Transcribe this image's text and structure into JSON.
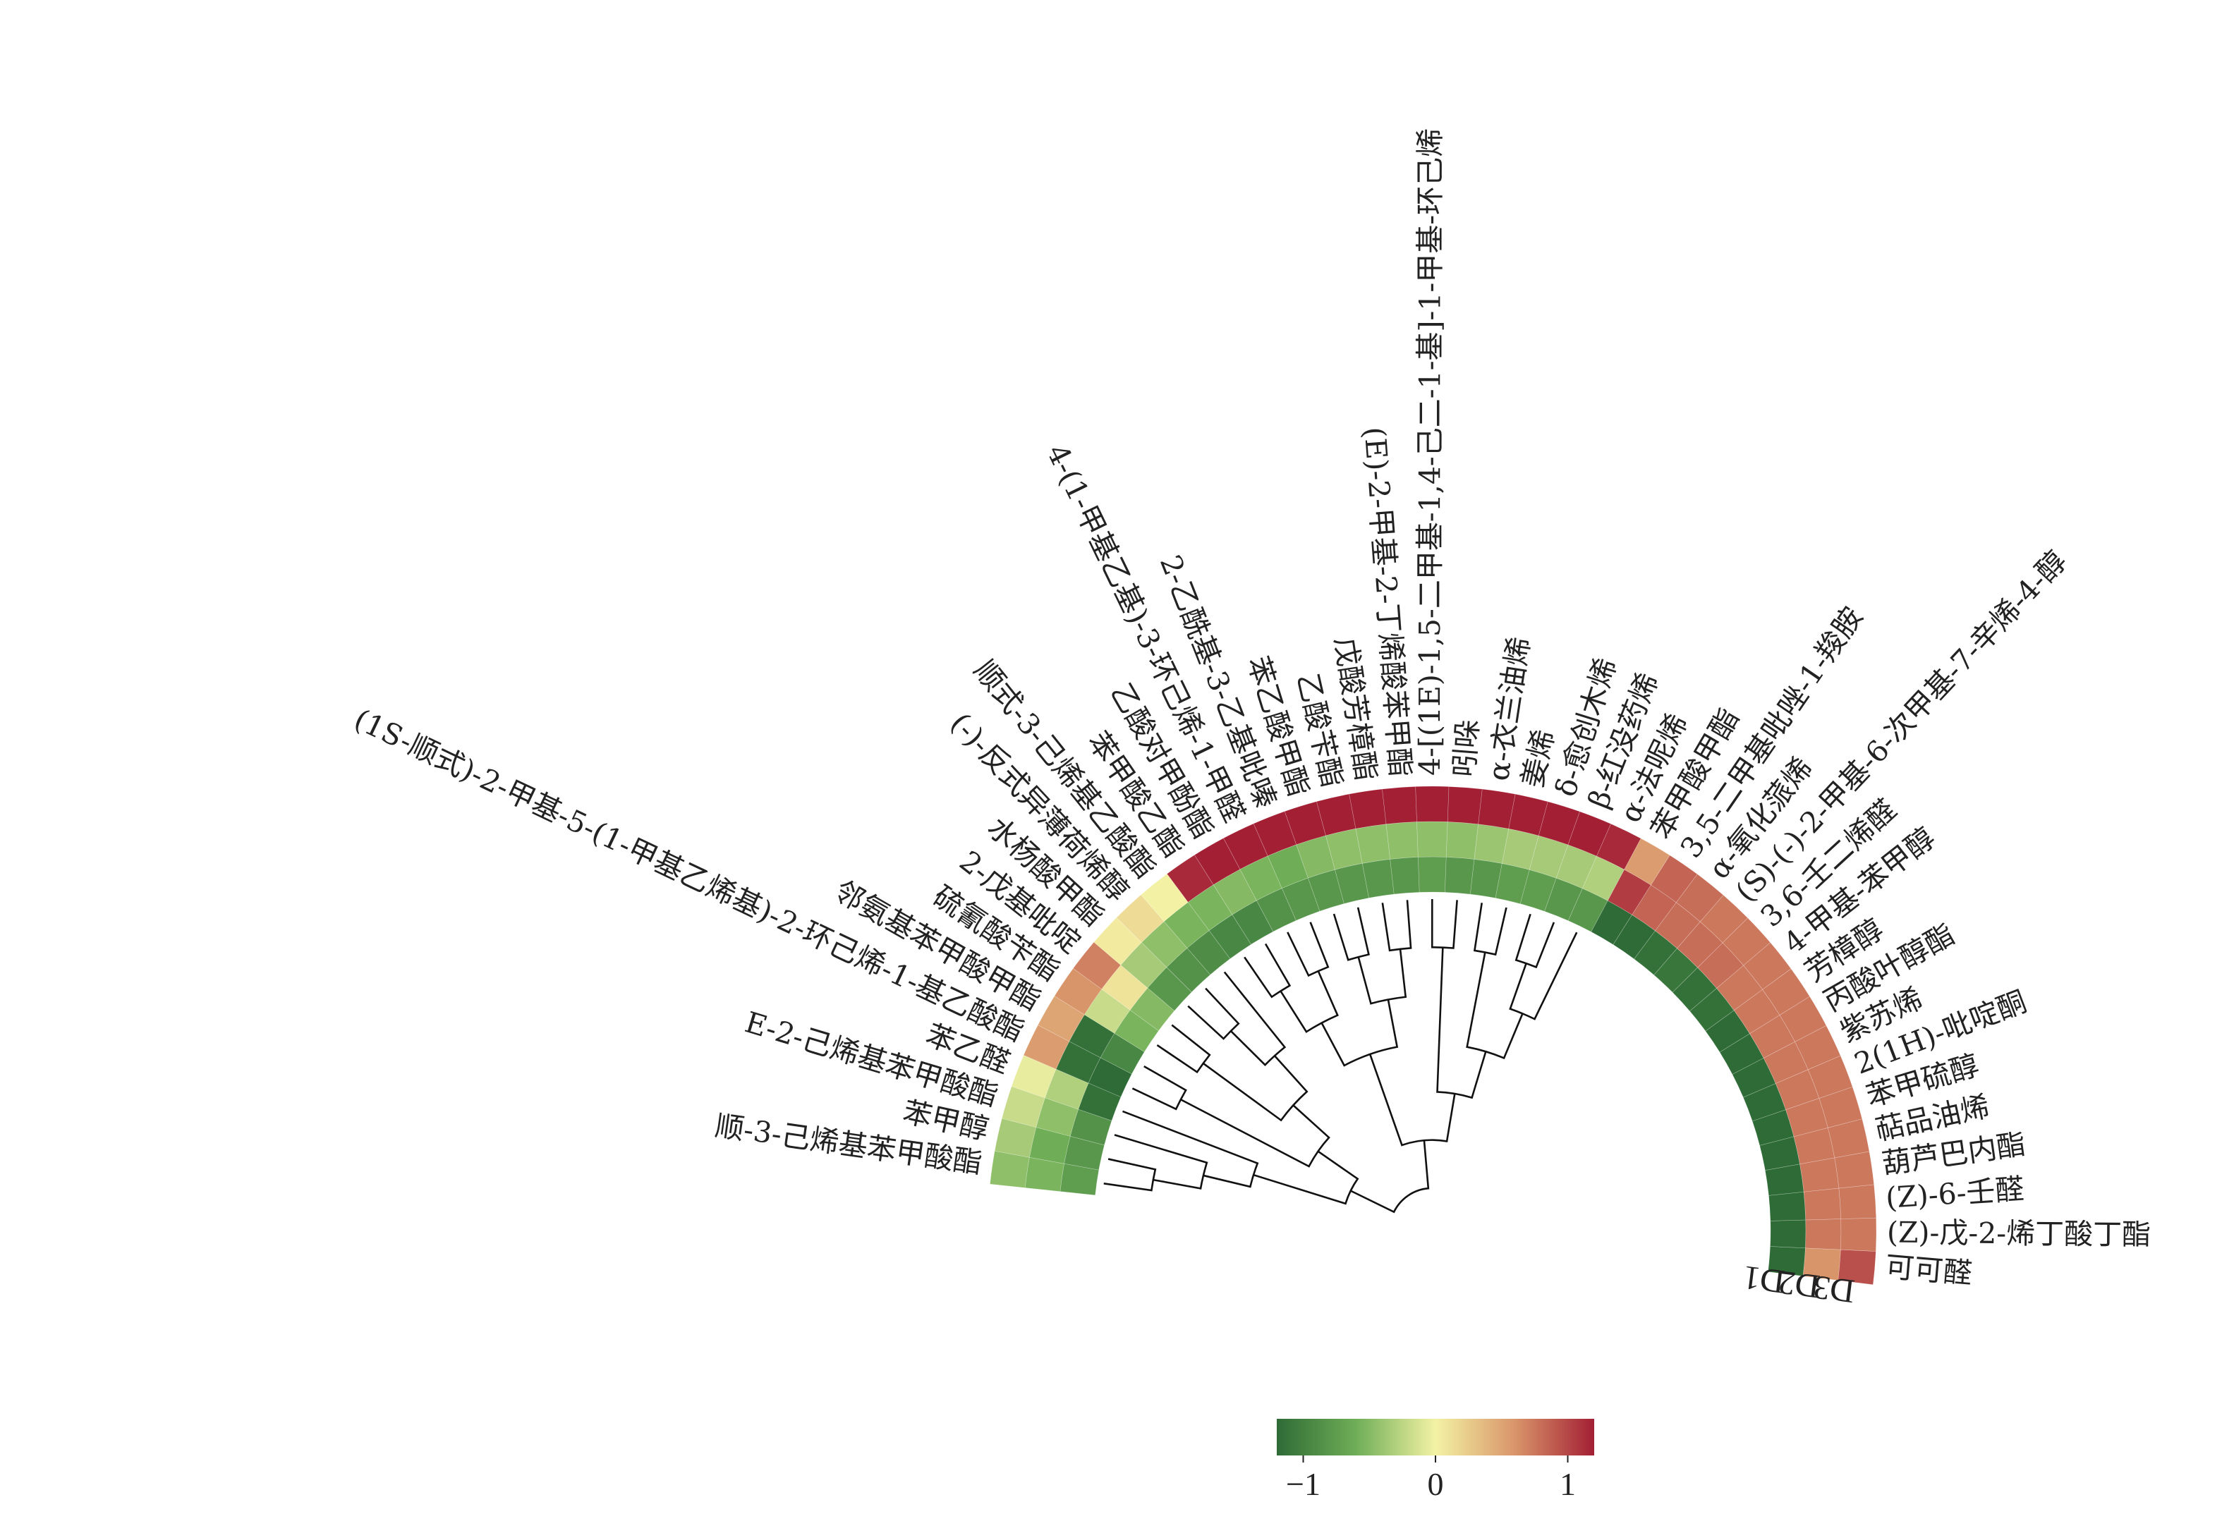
{
  "chart_data": {
    "type": "heatmap",
    "layout": "circular",
    "title": "",
    "series_names": [
      "D1",
      "D2",
      "D3"
    ],
    "compounds": [
      "顺-3-己烯基苯甲酸酯",
      "苯甲醇",
      "E-2-己烯基苯甲酸酯",
      "苯乙醛",
      "(1S-顺式)-2-甲基-5-(1-甲基乙烯基)-2-环己烯-1-基乙酸酯",
      "邻氨基苯甲酸甲酯",
      "硫氰酸苄酯",
      "2-戊基吡啶",
      "水杨酸甲酯",
      "(-)-反式异薄荷烯醇",
      "顺式-3-己烯基乙酸酯",
      "苯甲酸乙酯",
      "乙酸对甲酚酯",
      "4-(1-甲基乙基)-3-环己烯-1-甲醛",
      "2-乙酰基-3-乙基吡嗪",
      "苯乙酸甲酯",
      "乙酸苄酯",
      "戊酸芳樟酯",
      "(E)-2-甲基-2-丁烯酸苯甲酯",
      "4-[(1E)-1,5-二甲基-1,4-己二-1-基]-1-甲基-环己烯",
      "吲哚",
      "α-衣兰油烯",
      "姜烯",
      "δ-愈创木烯",
      "β-红没药烯",
      "α-法呢烯",
      "苯甲酸甲酯",
      "3,5-二甲基吡唑-1-羧胺",
      "α-氧化蒎烯",
      "(S)-(-)-2-甲基-6-次甲基-7-辛烯-4-醇",
      "3,6-壬二烯醛",
      "4-甲基-苯甲醇",
      "芳樟醇",
      "丙酸叶醇酯",
      "紫苏烯",
      "2(1H)-吡啶酮",
      "苯甲硫醇",
      "萜品油烯",
      "葫芦巴内酯",
      "(Z)-6-壬醛",
      "(Z)-戊-2-烯丁酸丁酯",
      "可可醛"
    ],
    "values": {
      "D1": [
        -0.75,
        -0.8,
        -0.85,
        -1.15,
        -1.2,
        -0.95,
        -0.55,
        -0.5,
        -0.8,
        -0.85,
        -0.9,
        -0.95,
        -0.95,
        -0.85,
        -0.8,
        -0.8,
        -0.8,
        -0.8,
        -0.8,
        -0.75,
        -0.8,
        -0.8,
        -0.75,
        -0.75,
        -0.8,
        -0.8,
        -1.2,
        -1.2,
        -1.15,
        -1.1,
        -1.15,
        -1.15,
        -1.2,
        -1.2,
        -1.2,
        -1.2,
        -1.2,
        -1.2,
        -1.2,
        -1.2,
        -1.2,
        -1.2
      ],
      "D2": [
        -0.55,
        -0.6,
        -0.45,
        -0.3,
        -1.15,
        -1.15,
        -0.2,
        0.1,
        -0.35,
        -0.45,
        -0.55,
        -0.55,
        -0.5,
        -0.55,
        -0.6,
        -0.5,
        -0.45,
        -0.45,
        -0.45,
        -0.45,
        -0.45,
        -0.4,
        -0.35,
        -0.35,
        -0.35,
        -0.3,
        1.05,
        0.85,
        0.8,
        0.8,
        0.8,
        0.75,
        0.75,
        0.75,
        0.75,
        0.75,
        0.75,
        0.75,
        0.75,
        0.75,
        0.75,
        0.6
      ],
      "D3": [
        -0.45,
        -0.35,
        -0.2,
        -0.05,
        0.55,
        0.5,
        0.6,
        0.7,
        0.05,
        0.15,
        0.0,
        1.15,
        1.2,
        1.2,
        1.2,
        1.2,
        1.2,
        1.2,
        1.2,
        1.2,
        1.2,
        1.2,
        1.2,
        1.2,
        1.2,
        1.15,
        0.55,
        0.85,
        0.8,
        0.75,
        0.75,
        0.75,
        0.75,
        0.75,
        0.75,
        0.75,
        0.75,
        0.75,
        0.75,
        0.75,
        0.75,
        0.95
      ]
    },
    "ring_order": [
      "D1",
      "D2",
      "D3"
    ],
    "colorbar": {
      "ticks": [
        -1,
        0,
        1
      ],
      "tick_labels": [
        "−1",
        "0",
        "1"
      ],
      "range": [
        -1.2,
        1.2
      ],
      "colors": [
        "#2e6b36",
        "#6fae57",
        "#f3f2a4",
        "#d9956a",
        "#a31f34"
      ]
    },
    "legend_position": "bottom-center",
    "colors": {
      "low": "#2e6b36",
      "mid": "#f3f2a4",
      "high": "#a31f34"
    }
  }
}
